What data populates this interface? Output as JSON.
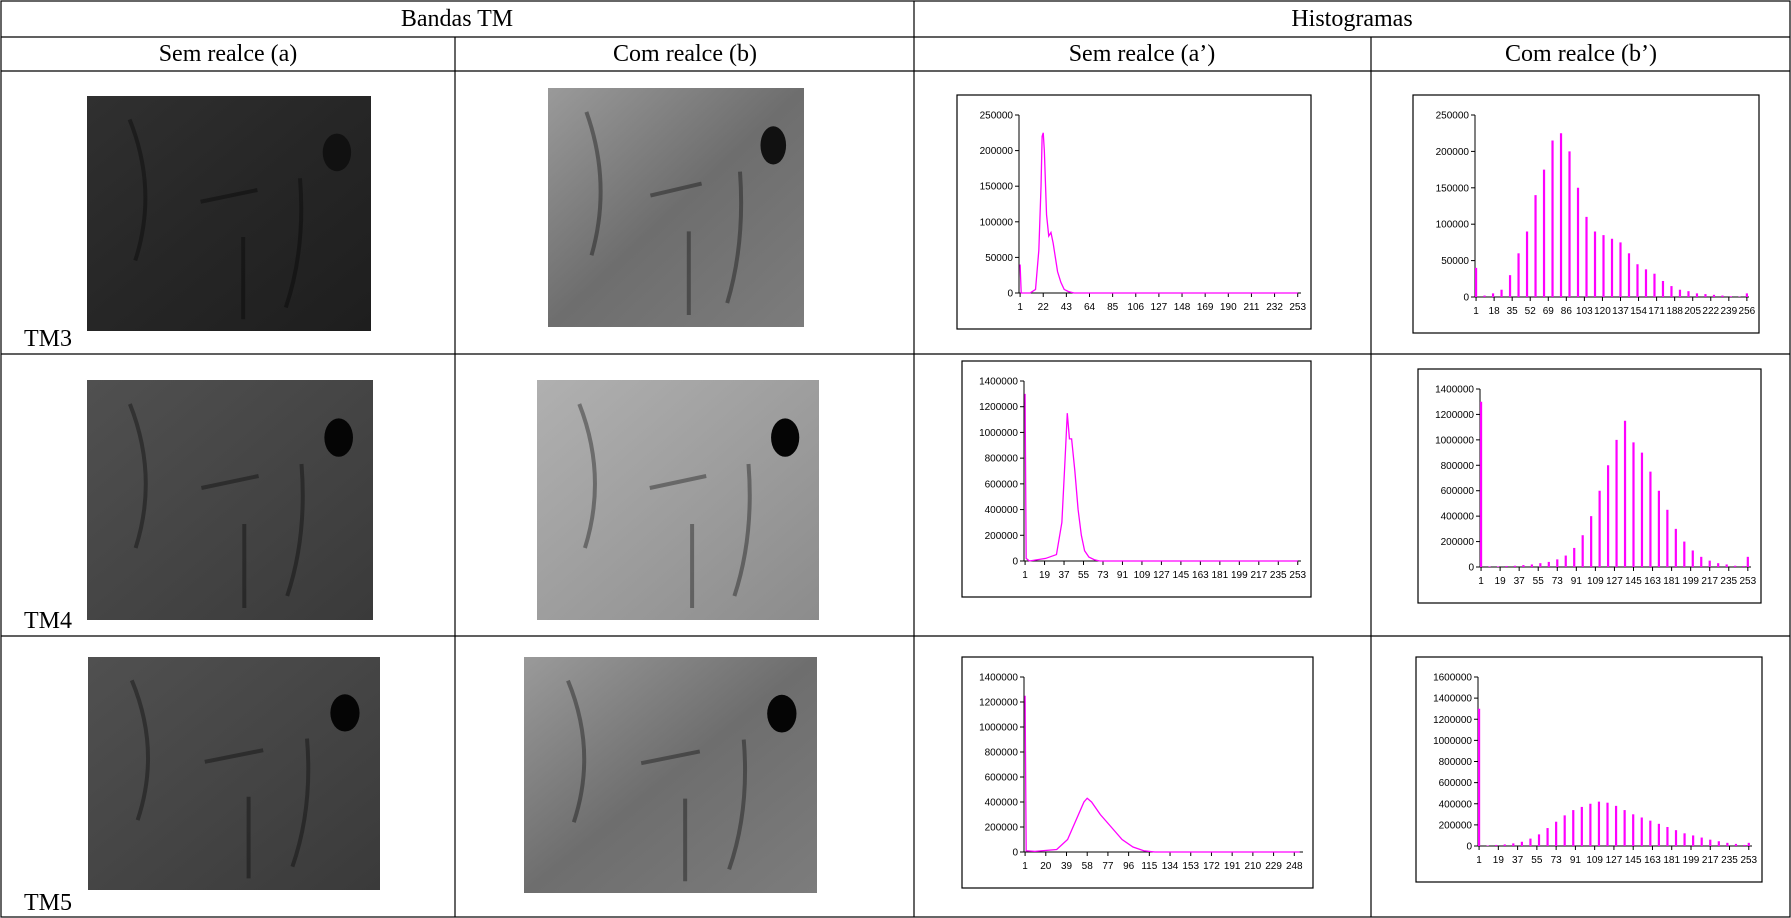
{
  "header": {
    "columns": [
      "Bandas TM",
      "Histogramas"
    ],
    "subcolumns": [
      "Sem realce (a)",
      "Com realce (b)",
      "Sem realce (a’)",
      "Com realce (b’)"
    ]
  },
  "rows": [
    {
      "label": "TM3",
      "histograms": [
        {
          "type": "line",
          "color": "#ff00ff",
          "xlim": [
            0,
            256
          ],
          "ylim": [
            0,
            250000
          ],
          "yticks": [
            0,
            50000,
            100000,
            150000,
            200000,
            250000
          ],
          "xticks": [
            1,
            22,
            43,
            64,
            85,
            106,
            127,
            148,
            169,
            190,
            211,
            232,
            253
          ],
          "x": [
            1,
            2,
            10,
            15,
            18,
            20,
            21,
            22,
            23,
            25,
            27,
            29,
            31,
            33,
            35,
            38,
            41,
            45,
            50,
            60,
            100,
            253
          ],
          "values": [
            40000,
            0,
            0,
            5000,
            60000,
            150000,
            220000,
            225000,
            200000,
            110000,
            80000,
            85000,
            70000,
            50000,
            30000,
            15000,
            5000,
            2000,
            0,
            0,
            0,
            0
          ]
        },
        {
          "type": "bar",
          "color": "#ff00ff",
          "xlim": [
            0,
            258
          ],
          "ylim": [
            0,
            250000
          ],
          "yticks": [
            0,
            50000,
            100000,
            150000,
            200000,
            250000
          ],
          "xticks": [
            1,
            18,
            35,
            52,
            69,
            86,
            103,
            120,
            137,
            154,
            171,
            188,
            205,
            222,
            239,
            256
          ],
          "x": [
            1,
            9,
            17,
            25,
            33,
            41,
            49,
            57,
            65,
            73,
            81,
            89,
            97,
            105,
            113,
            121,
            129,
            137,
            145,
            153,
            161,
            169,
            177,
            185,
            193,
            201,
            209,
            217,
            225,
            233,
            241,
            249,
            256
          ],
          "values": [
            40000,
            2000,
            5000,
            10000,
            30000,
            60000,
            90000,
            140000,
            175000,
            215000,
            225000,
            200000,
            150000,
            110000,
            90000,
            85000,
            80000,
            75000,
            60000,
            45000,
            38000,
            32000,
            22000,
            15000,
            10000,
            8000,
            5000,
            4000,
            3000,
            2000,
            1000,
            500,
            5000
          ]
        }
      ]
    },
    {
      "label": "TM4",
      "histograms": [
        {
          "type": "line",
          "color": "#ff00ff",
          "xlim": [
            0,
            256
          ],
          "ylim": [
            0,
            1400000
          ],
          "yticks": [
            0,
            200000,
            400000,
            600000,
            800000,
            1000000,
            1200000,
            1400000
          ],
          "xticks": [
            1,
            19,
            37,
            55,
            73,
            91,
            109,
            127,
            145,
            163,
            181,
            199,
            217,
            235,
            253
          ],
          "x": [
            1,
            2,
            5,
            20,
            30,
            35,
            38,
            40,
            42,
            44,
            47,
            50,
            53,
            56,
            60,
            65,
            70,
            80,
            253
          ],
          "values": [
            1300000,
            20000,
            0,
            20000,
            50000,
            300000,
            800000,
            1150000,
            950000,
            950000,
            700000,
            400000,
            200000,
            80000,
            30000,
            10000,
            0,
            0,
            0
          ]
        },
        {
          "type": "bar",
          "color": "#ff00ff",
          "xlim": [
            0,
            256
          ],
          "ylim": [
            0,
            1400000
          ],
          "yticks": [
            0,
            200000,
            400000,
            600000,
            800000,
            1000000,
            1200000,
            1400000
          ],
          "xticks": [
            1,
            19,
            37,
            55,
            73,
            91,
            109,
            127,
            145,
            163,
            181,
            199,
            217,
            235,
            253
          ],
          "x": [
            1,
            9,
            17,
            25,
            33,
            41,
            49,
            57,
            65,
            73,
            81,
            89,
            97,
            105,
            113,
            121,
            129,
            137,
            145,
            153,
            161,
            169,
            177,
            185,
            193,
            201,
            209,
            217,
            225,
            233,
            241,
            249,
            253
          ],
          "values": [
            1300000,
            5000,
            5000,
            8000,
            10000,
            15000,
            20000,
            30000,
            40000,
            60000,
            90000,
            150000,
            250000,
            400000,
            600000,
            800000,
            1000000,
            1150000,
            980000,
            900000,
            750000,
            600000,
            450000,
            300000,
            200000,
            130000,
            80000,
            50000,
            30000,
            20000,
            10000,
            8000,
            80000
          ]
        }
      ]
    },
    {
      "label": "TM5",
      "histograms": [
        {
          "type": "line",
          "color": "#ff00ff",
          "xlim": [
            0,
            256
          ],
          "ylim": [
            0,
            1400000
          ],
          "yticks": [
            0,
            200000,
            400000,
            600000,
            800000,
            1000000,
            1200000,
            1400000
          ],
          "xticks": [
            1,
            20,
            39,
            58,
            77,
            96,
            115,
            134,
            153,
            172,
            191,
            210,
            229,
            248
          ],
          "x": [
            1,
            2,
            10,
            30,
            40,
            50,
            55,
            58,
            62,
            70,
            80,
            90,
            100,
            110,
            120,
            253
          ],
          "values": [
            1250000,
            10000,
            5000,
            20000,
            100000,
            300000,
            400000,
            430000,
            400000,
            300000,
            200000,
            100000,
            40000,
            10000,
            0,
            0
          ]
        },
        {
          "type": "bar",
          "color": "#ff00ff",
          "xlim": [
            0,
            256
          ],
          "ylim": [
            0,
            1600000
          ],
          "yticks": [
            0,
            200000,
            400000,
            600000,
            800000,
            1000000,
            1200000,
            1400000,
            1600000
          ],
          "xticks": [
            1,
            19,
            37,
            55,
            73,
            91,
            109,
            127,
            145,
            163,
            181,
            199,
            217,
            235,
            253
          ],
          "x": [
            1,
            9,
            17,
            25,
            33,
            41,
            49,
            57,
            65,
            73,
            81,
            89,
            97,
            105,
            113,
            121,
            129,
            137,
            145,
            153,
            161,
            169,
            177,
            185,
            193,
            201,
            209,
            217,
            225,
            233,
            241,
            249,
            253
          ],
          "values": [
            1300000,
            5000,
            10000,
            15000,
            25000,
            40000,
            70000,
            110000,
            170000,
            230000,
            290000,
            340000,
            370000,
            400000,
            420000,
            410000,
            380000,
            340000,
            300000,
            270000,
            240000,
            210000,
            180000,
            150000,
            120000,
            100000,
            80000,
            60000,
            45000,
            30000,
            20000,
            10000,
            30000
          ]
        }
      ]
    }
  ]
}
